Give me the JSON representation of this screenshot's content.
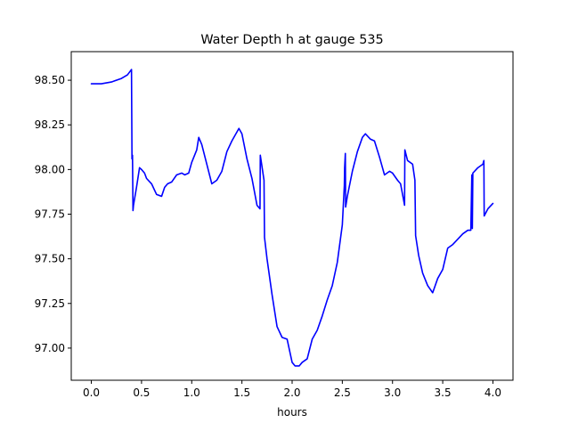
{
  "chart_data": {
    "type": "line",
    "title": "Water Depth h at gauge 535",
    "xlabel": "hours",
    "ylabel": "",
    "xlim": [
      -0.2,
      4.2
    ],
    "ylim": [
      96.82,
      98.66
    ],
    "xticks": [
      0.0,
      0.5,
      1.0,
      1.5,
      2.0,
      2.5,
      3.0,
      3.5,
      4.0
    ],
    "xtick_labels": [
      "0.0",
      "0.5",
      "1.0",
      "1.5",
      "2.0",
      "2.5",
      "3.0",
      "3.5",
      "4.0"
    ],
    "yticks": [
      97.0,
      97.25,
      97.5,
      97.75,
      98.0,
      98.25,
      98.5
    ],
    "ytick_labels": [
      "97.00",
      "97.25",
      "97.50",
      "97.75",
      "98.00",
      "98.25",
      "98.50"
    ],
    "grid": false,
    "series": [
      {
        "color": "#0000ff",
        "x": [
          0.0,
          0.1,
          0.2,
          0.3,
          0.36,
          0.4,
          0.405,
          0.41,
          0.415,
          0.42,
          0.45,
          0.48,
          0.5,
          0.53,
          0.55,
          0.6,
          0.65,
          0.7,
          0.73,
          0.76,
          0.8,
          0.85,
          0.9,
          0.93,
          0.97,
          1.0,
          1.05,
          1.07,
          1.1,
          1.15,
          1.2,
          1.25,
          1.3,
          1.35,
          1.4,
          1.45,
          1.47,
          1.5,
          1.55,
          1.6,
          1.65,
          1.68,
          1.683,
          1.72,
          1.725,
          1.75,
          1.8,
          1.85,
          1.9,
          1.95,
          2.0,
          2.03,
          2.07,
          2.1,
          2.15,
          2.2,
          2.25,
          2.3,
          2.35,
          2.4,
          2.45,
          2.5,
          2.52,
          2.523,
          2.53,
          2.533,
          2.55,
          2.6,
          2.65,
          2.7,
          2.73,
          2.78,
          2.82,
          2.87,
          2.92,
          2.97,
          3.0,
          3.05,
          3.08,
          3.12,
          3.123,
          3.15,
          3.2,
          3.223,
          3.23,
          3.26,
          3.3,
          3.35,
          3.4,
          3.45,
          3.5,
          3.55,
          3.6,
          3.65,
          3.7,
          3.75,
          3.78,
          3.79,
          3.795,
          3.8,
          3.85,
          3.9,
          3.91,
          3.913,
          3.95,
          4.0
        ],
        "y": [
          98.48,
          98.48,
          98.49,
          98.51,
          98.53,
          98.56,
          98.06,
          98.08,
          97.77,
          97.8,
          97.9,
          98.01,
          98.0,
          97.98,
          97.95,
          97.92,
          97.86,
          97.85,
          97.9,
          97.92,
          97.93,
          97.97,
          97.98,
          97.97,
          97.98,
          98.04,
          98.11,
          98.18,
          98.14,
          98.03,
          97.92,
          97.94,
          97.99,
          98.1,
          98.16,
          98.21,
          98.23,
          98.2,
          98.06,
          97.95,
          97.8,
          97.78,
          98.08,
          97.94,
          97.62,
          97.5,
          97.3,
          97.12,
          97.06,
          97.05,
          96.92,
          96.9,
          96.9,
          96.92,
          96.94,
          97.05,
          97.1,
          97.18,
          97.27,
          97.35,
          97.48,
          97.69,
          97.91,
          98.01,
          98.09,
          97.79,
          97.85,
          97.99,
          98.1,
          98.18,
          98.2,
          98.17,
          98.16,
          98.07,
          97.97,
          97.99,
          97.98,
          97.94,
          97.92,
          97.8,
          98.11,
          98.05,
          98.03,
          97.94,
          97.63,
          97.52,
          97.42,
          97.35,
          97.31,
          97.39,
          97.44,
          97.56,
          97.58,
          97.61,
          97.64,
          97.66,
          97.66,
          97.97,
          97.67,
          97.98,
          98.01,
          98.03,
          98.05,
          97.74,
          97.78,
          97.81
        ]
      }
    ]
  }
}
